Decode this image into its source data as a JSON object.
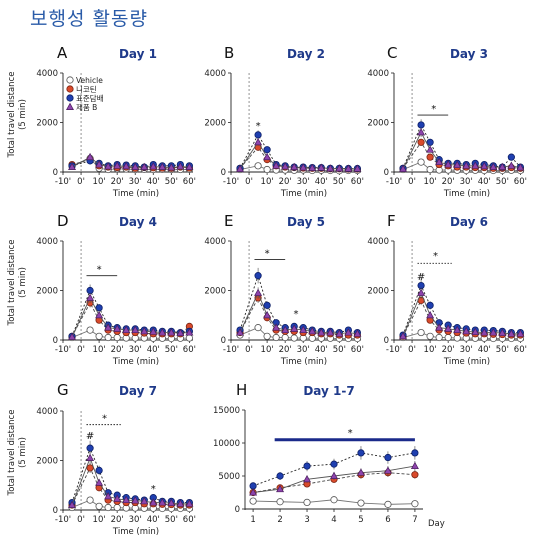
{
  "page": {
    "title": "보행성 활동량"
  },
  "legend": [
    {
      "name": "Vehicle",
      "fill": "#ffffff",
      "stroke": "#555555",
      "shape": "circle",
      "line": "#777777",
      "dash": "0"
    },
    {
      "name": "니코틴",
      "fill": "#d94a2b",
      "stroke": "#7a2514",
      "shape": "circle",
      "line": "#444444",
      "dash": "3,2"
    },
    {
      "name": "표준담배",
      "fill": "#1f3fb0",
      "stroke": "#0d1f66",
      "shape": "circle",
      "line": "#222222",
      "dash": "2,2"
    },
    {
      "name": "제품 B",
      "fill": "#8e44ad",
      "stroke": "#4a1f5c",
      "shape": "triangle",
      "line": "#555555",
      "dash": "0"
    }
  ],
  "shared": {
    "ylabel": "Total travel distance\n(5 min)",
    "xlabel": "Time (min)",
    "xticks": [
      "-10'",
      "0'",
      "10'",
      "20'",
      "30'",
      "40'",
      "50'",
      "60'"
    ],
    "xtick_values": [
      -10,
      0,
      10,
      20,
      30,
      40,
      50,
      60
    ],
    "x": [
      -5,
      5,
      10,
      15,
      20,
      25,
      30,
      35,
      40,
      45,
      50,
      55,
      60
    ]
  },
  "chart_data": [
    {
      "type": "line",
      "letter": "A",
      "title": "Day 1",
      "ylim": [
        0,
        4000
      ],
      "yticks": [
        0,
        2000,
        4000
      ],
      "xlim": [
        -10,
        62
      ],
      "x": [
        -5,
        5,
        10,
        15,
        20,
        25,
        30,
        35,
        40,
        45,
        50,
        55,
        60
      ],
      "series": [
        {
          "name": "Vehicle",
          "values": [
            250,
            550,
            150,
            100,
            130,
            120,
            100,
            110,
            100,
            110,
            100,
            100,
            110
          ]
        },
        {
          "name": "니코틴",
          "values": [
            300,
            500,
            250,
            200,
            180,
            200,
            150,
            180,
            170,
            160,
            150,
            200,
            160
          ]
        },
        {
          "name": "표준담배",
          "values": [
            250,
            450,
            350,
            250,
            300,
            280,
            250,
            200,
            300,
            250,
            250,
            300,
            250
          ]
        },
        {
          "name": "제품 B",
          "values": [
            200,
            600,
            300,
            220,
            250,
            230,
            200,
            200,
            220,
            200,
            180,
            220,
            200
          ]
        }
      ],
      "annotations": []
    },
    {
      "type": "line",
      "letter": "B",
      "title": "Day 2",
      "ylim": [
        0,
        4000
      ],
      "yticks": [
        0,
        2000,
        4000
      ],
      "xlim": [
        -10,
        62
      ],
      "x": [
        -5,
        5,
        10,
        15,
        20,
        25,
        30,
        35,
        40,
        45,
        50,
        55,
        60
      ],
      "series": [
        {
          "name": "Vehicle",
          "values": [
            100,
            250,
            100,
            80,
            80,
            70,
            80,
            60,
            70,
            60,
            50,
            60,
            60
          ]
        },
        {
          "name": "니코틴",
          "values": [
            150,
            1000,
            500,
            250,
            200,
            180,
            160,
            150,
            150,
            130,
            130,
            120,
            120
          ]
        },
        {
          "name": "표준담배",
          "values": [
            150,
            1500,
            900,
            300,
            250,
            200,
            200,
            180,
            180,
            150,
            150,
            140,
            140
          ]
        },
        {
          "name": "제품 B",
          "values": [
            120,
            1200,
            600,
            250,
            220,
            200,
            180,
            160,
            170,
            140,
            140,
            130,
            130
          ]
        }
      ],
      "annotations": [
        {
          "text": "*",
          "x": 5,
          "y": 1850
        }
      ]
    },
    {
      "type": "line",
      "letter": "C",
      "title": "Day 3",
      "ylim": [
        0,
        4000
      ],
      "yticks": [
        0,
        2000,
        4000
      ],
      "xlim": [
        -10,
        62
      ],
      "x": [
        -5,
        5,
        10,
        15,
        20,
        25,
        30,
        35,
        40,
        45,
        50,
        55,
        60
      ],
      "series": [
        {
          "name": "Vehicle",
          "values": [
            100,
            400,
            100,
            80,
            80,
            70,
            60,
            70,
            60,
            60,
            60,
            70,
            60
          ]
        },
        {
          "name": "니코틴",
          "values": [
            150,
            1200,
            600,
            300,
            250,
            200,
            200,
            180,
            180,
            150,
            150,
            180,
            150
          ]
        },
        {
          "name": "표준담배",
          "values": [
            150,
            1900,
            1200,
            500,
            350,
            350,
            300,
            350,
            300,
            250,
            200,
            600,
            200
          ]
        },
        {
          "name": "제품 B",
          "values": [
            120,
            1600,
            900,
            400,
            300,
            280,
            250,
            250,
            230,
            200,
            200,
            250,
            180
          ]
        }
      ],
      "annotations": [
        {
          "text": "*",
          "x": 12,
          "y": 2550
        }
      ],
      "bracket": {
        "x1": 3,
        "x2": 20,
        "y": 2300,
        "style": "solid"
      }
    },
    {
      "type": "line",
      "letter": "D",
      "title": "Day 4",
      "ylim": [
        0,
        4000
      ],
      "yticks": [
        0,
        2000,
        4000
      ],
      "xlim": [
        -10,
        62
      ],
      "x": [
        -5,
        5,
        10,
        15,
        20,
        25,
        30,
        35,
        40,
        45,
        50,
        55,
        60
      ],
      "series": [
        {
          "name": "Vehicle",
          "values": [
            100,
            400,
            150,
            100,
            100,
            80,
            80,
            80,
            70,
            70,
            60,
            70,
            80
          ]
        },
        {
          "name": "니코틴",
          "values": [
            150,
            1500,
            800,
            400,
            350,
            300,
            300,
            280,
            250,
            250,
            250,
            250,
            550
          ]
        },
        {
          "name": "표준담배",
          "values": [
            150,
            2000,
            1300,
            600,
            500,
            450,
            450,
            400,
            400,
            350,
            350,
            300,
            350
          ]
        },
        {
          "name": "제품 B",
          "values": [
            120,
            1700,
            1000,
            500,
            450,
            400,
            400,
            350,
            330,
            300,
            300,
            280,
            300
          ]
        }
      ],
      "annotations": [
        {
          "text": "*",
          "x": 10,
          "y": 2850
        }
      ],
      "bracket": {
        "x1": 3,
        "x2": 20,
        "y": 2600,
        "style": "solid"
      }
    },
    {
      "type": "line",
      "letter": "E",
      "title": "Day 5",
      "ylim": [
        0,
        4000
      ],
      "yticks": [
        0,
        2000,
        4000
      ],
      "xlim": [
        -10,
        62
      ],
      "x": [
        -5,
        5,
        10,
        15,
        20,
        25,
        30,
        35,
        40,
        45,
        50,
        55,
        60
      ],
      "series": [
        {
          "name": "Vehicle",
          "values": [
            200,
            500,
            150,
            100,
            100,
            80,
            80,
            70,
            70,
            70,
            60,
            60,
            60
          ]
        },
        {
          "name": "니코틴",
          "values": [
            300,
            1700,
            900,
            400,
            350,
            350,
            300,
            300,
            250,
            250,
            200,
            200,
            200
          ]
        },
        {
          "name": "표준담배",
          "values": [
            400,
            2600,
            1400,
            700,
            500,
            550,
            500,
            400,
            350,
            350,
            300,
            400,
            300
          ]
        },
        {
          "name": "제품 B",
          "values": [
            300,
            1900,
            1000,
            500,
            400,
            450,
            400,
            350,
            300,
            300,
            250,
            300,
            250
          ]
        }
      ],
      "annotations": [
        {
          "text": "*",
          "x": 10,
          "y": 3500
        },
        {
          "text": "*",
          "x": 26,
          "y": 1050
        }
      ],
      "bracket": {
        "x1": 3,
        "x2": 20,
        "y": 3250,
        "style": "solid"
      }
    },
    {
      "type": "line",
      "letter": "F",
      "title": "Day 6",
      "ylim": [
        0,
        4000
      ],
      "yticks": [
        0,
        2000,
        4000
      ],
      "xlim": [
        -10,
        62
      ],
      "x": [
        -5,
        5,
        10,
        15,
        20,
        25,
        30,
        35,
        40,
        45,
        50,
        55,
        60
      ],
      "series": [
        {
          "name": "Vehicle",
          "values": [
            100,
            300,
            150,
            100,
            100,
            80,
            80,
            70,
            70,
            60,
            60,
            60,
            60
          ]
        },
        {
          "name": "니코틴",
          "values": [
            150,
            1600,
            800,
            400,
            350,
            300,
            280,
            250,
            250,
            230,
            220,
            200,
            200
          ]
        },
        {
          "name": "표준담배",
          "values": [
            200,
            2200,
            1400,
            700,
            600,
            500,
            450,
            400,
            400,
            380,
            350,
            300,
            300
          ]
        },
        {
          "name": "제품 B",
          "values": [
            150,
            1900,
            1000,
            500,
            450,
            400,
            350,
            320,
            300,
            300,
            280,
            250,
            250
          ]
        }
      ],
      "annotations": [
        {
          "text": "*",
          "x": 13,
          "y": 3400
        },
        {
          "text": "#",
          "x": 5,
          "y": 2550
        }
      ],
      "bracket": {
        "x1": 3,
        "x2": 22,
        "y": 3100,
        "style": "dotted"
      }
    },
    {
      "type": "line",
      "letter": "G",
      "title": "Day 7",
      "ylim": [
        0,
        4000
      ],
      "yticks": [
        0,
        2000,
        4000
      ],
      "xlim": [
        -10,
        62
      ],
      "x": [
        -5,
        5,
        10,
        15,
        20,
        25,
        30,
        35,
        40,
        45,
        50,
        55,
        60
      ],
      "series": [
        {
          "name": "Vehicle",
          "values": [
            100,
            400,
            150,
            100,
            100,
            80,
            80,
            70,
            70,
            60,
            60,
            60,
            60
          ]
        },
        {
          "name": "니코틴",
          "values": [
            200,
            1700,
            900,
            400,
            350,
            300,
            300,
            250,
            250,
            230,
            220,
            200,
            200
          ]
        },
        {
          "name": "표준담배",
          "values": [
            300,
            2500,
            1600,
            700,
            600,
            500,
            450,
            400,
            500,
            350,
            350,
            300,
            300
          ]
        },
        {
          "name": "제품 B",
          "values": [
            200,
            2100,
            1100,
            550,
            450,
            400,
            380,
            350,
            300,
            300,
            280,
            250,
            250
          ]
        }
      ],
      "annotations": [
        {
          "text": "*",
          "x": 13,
          "y": 3700
        },
        {
          "text": "#",
          "x": 5,
          "y": 3000
        },
        {
          "text": "*",
          "x": 40,
          "y": 850
        }
      ],
      "bracket": {
        "x1": 3,
        "x2": 22,
        "y": 3450,
        "style": "dotted"
      }
    },
    {
      "type": "line",
      "letter": "H",
      "title": "Day 1-7",
      "ylim": [
        0,
        15000
      ],
      "yticks": [
        0,
        5000,
        10000,
        15000
      ],
      "xlim": [
        0.7,
        7.3
      ],
      "xlabel": "Day",
      "x": [
        1,
        2,
        3,
        4,
        5,
        6,
        7
      ],
      "series": [
        {
          "name": "Vehicle",
          "values": [
            1200,
            1100,
            1000,
            1400,
            900,
            700,
            800
          ]
        },
        {
          "name": "니코틴",
          "values": [
            2500,
            3200,
            3800,
            4500,
            5200,
            5500,
            5200
          ]
        },
        {
          "name": "표준담배",
          "values": [
            3500,
            5000,
            6500,
            6800,
            8500,
            7800,
            8500
          ]
        },
        {
          "name": "제품 B",
          "values": [
            2500,
            3000,
            4500,
            5000,
            5500,
            5800,
            6500
          ]
        }
      ],
      "annotations": [
        {
          "text": "*",
          "x": 4.6,
          "y": 11500
        }
      ],
      "bracket": {
        "x1": 1.8,
        "x2": 7.0,
        "y": 10500,
        "style": "thick"
      }
    }
  ]
}
